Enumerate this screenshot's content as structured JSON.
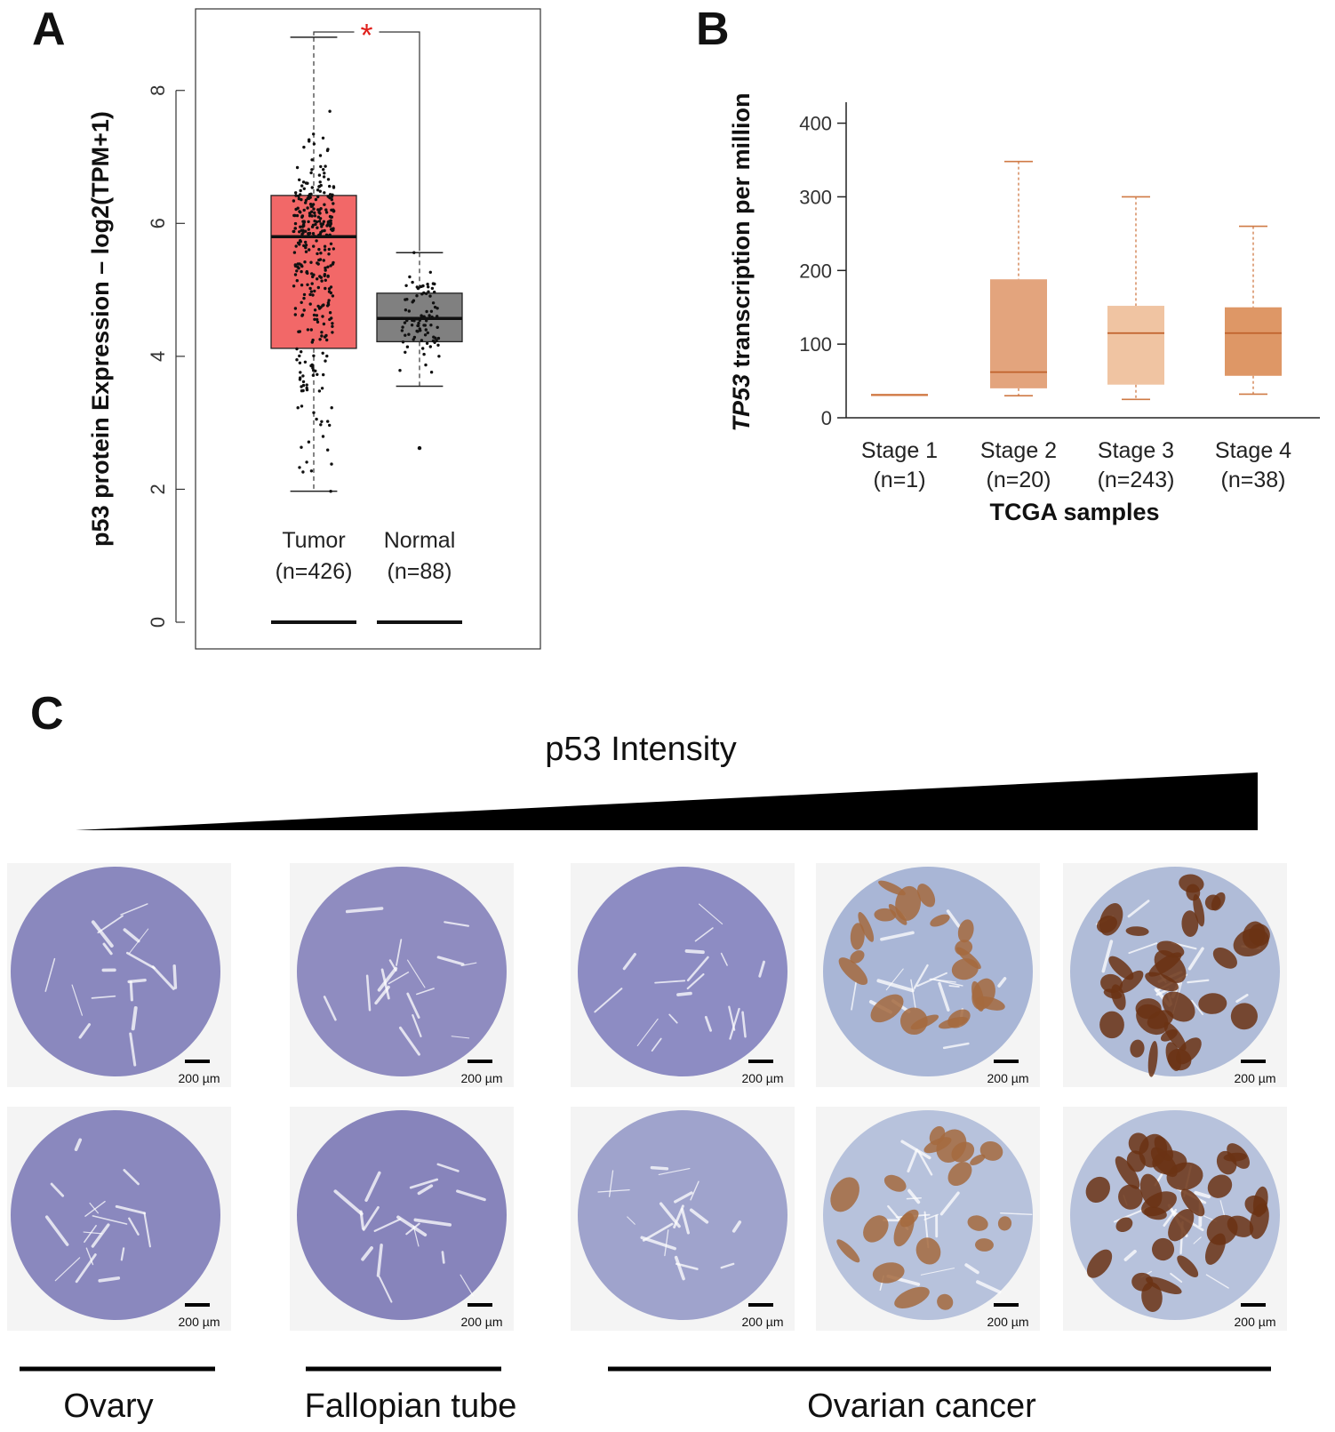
{
  "panels": {
    "a": "A",
    "b": "B",
    "c": "C"
  },
  "chart_data": [
    {
      "panel": "A",
      "type": "box",
      "ylabel": "p53 protein Expression – log2(TPM+1)",
      "ylim": [
        0,
        9.2
      ],
      "yticks": [
        0,
        2,
        4,
        6,
        8
      ],
      "significance": "*",
      "groups": [
        {
          "label": "Tumor",
          "n_label": "(n=426)",
          "min": 1.97,
          "q1": 4.12,
          "median": 5.8,
          "q3": 6.42,
          "max": 8.8,
          "color": "#f26868",
          "n": 426
        },
        {
          "label": "Normal",
          "n_label": "(n=88)",
          "min": 3.55,
          "q1": 4.22,
          "median": 4.57,
          "q3": 4.95,
          "max": 5.56,
          "color": "#808080",
          "n": 88,
          "outliers": [
            2.62
          ]
        }
      ]
    },
    {
      "panel": "B",
      "type": "box",
      "ylabel": "TP53 transcription per million",
      "ylabel_italic_part": "TP53",
      "ylabel_rest": " transcription per million",
      "xlabel": "TCGA samples",
      "ylim": [
        0,
        420
      ],
      "yticks": [
        0,
        100,
        200,
        300,
        400
      ],
      "groups": [
        {
          "label": "Stage 1",
          "n_label": "(n=1)",
          "min": 31,
          "q1": 31,
          "median": 31,
          "q3": 31,
          "max": 31,
          "color": "#e8b48c"
        },
        {
          "label": "Stage 2",
          "n_label": "(n=20)",
          "min": 30,
          "q1": 40,
          "median": 62,
          "q3": 188,
          "max": 348,
          "color": "#e3a47d"
        },
        {
          "label": "Stage 3",
          "n_label": "(n=243)",
          "min": 25,
          "q1": 45,
          "median": 115,
          "q3": 152,
          "max": 300,
          "color": "#f0c4a2"
        },
        {
          "label": "Stage 4",
          "n_label": "(n=38)",
          "min": 32,
          "q1": 57,
          "median": 115,
          "q3": 150,
          "max": 260,
          "color": "#de9766"
        }
      ]
    }
  ],
  "panel_c": {
    "title": "p53 Intensity",
    "scale_bar": "200 µm",
    "groups": [
      "Ovary",
      "Fallopian tube",
      "Ovarian cancer"
    ],
    "cores": [
      {
        "tissue": "ovary",
        "stain": "#8a88be",
        "brown": 0.0
      },
      {
        "tissue": "fallopian-tube",
        "stain": "#8f8cc0",
        "brown": 0.0
      },
      {
        "tissue": "ovarian-cancer",
        "stain": "#8d8cc3",
        "brown": 0.0
      },
      {
        "tissue": "ovarian-cancer",
        "stain": "#a9b6d6",
        "brown": 0.55
      },
      {
        "tissue": "ovarian-cancer",
        "stain": "#b0bcd8",
        "brown": 0.9
      },
      {
        "tissue": "ovary",
        "stain": "#8a88be",
        "brown": 0.0
      },
      {
        "tissue": "fallopian-tube",
        "stain": "#8784bb",
        "brown": 0.0
      },
      {
        "tissue": "ovarian-cancer",
        "stain": "#9fa3cc",
        "brown": 0.0
      },
      {
        "tissue": "ovarian-cancer",
        "stain": "#b7c2dc",
        "brown": 0.5
      },
      {
        "tissue": "ovarian-cancer",
        "stain": "#b7c2dc",
        "brown": 0.8
      }
    ]
  }
}
